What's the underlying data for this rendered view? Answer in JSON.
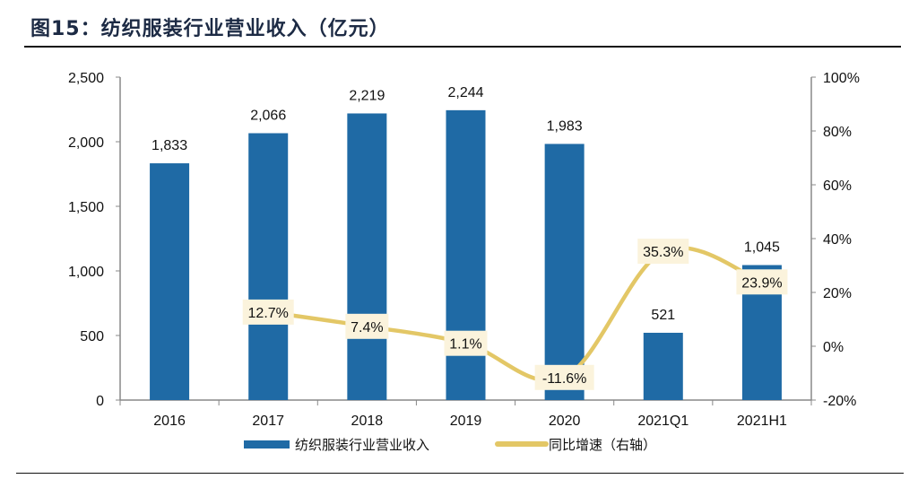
{
  "title": "图15：纺织服装行业营业收入（亿元）",
  "colors": {
    "bar": "#1f6aa5",
    "line": "#e3c766",
    "label_bg": "#fbf3dc",
    "title": "#1c2a44"
  },
  "chart_data": {
    "type": "bar+line",
    "categories": [
      "2016",
      "2017",
      "2018",
      "2019",
      "2020",
      "2021Q1",
      "2021H1"
    ],
    "series": [
      {
        "name": "纺织服装行业营业收入",
        "type": "bar",
        "axis": "left",
        "values": [
          1833,
          2066,
          2219,
          2244,
          1983,
          521,
          1045
        ],
        "labels": [
          "1,833",
          "2,066",
          "2,219",
          "2,244",
          "1,983",
          "521",
          "1,045"
        ]
      },
      {
        "name": "同比增速（右轴）",
        "type": "line",
        "axis": "right",
        "values": [
          null,
          12.7,
          7.4,
          1.1,
          -11.6,
          35.3,
          23.9
        ],
        "labels": [
          "",
          "12.7%",
          "7.4%",
          "1.1%",
          "-11.6%",
          "35.3%",
          "23.9%"
        ]
      }
    ],
    "y_left": {
      "range": [
        0,
        2500
      ],
      "ticks": [
        "0",
        "500",
        "1,000",
        "1,500",
        "2,000",
        "2,500"
      ]
    },
    "y_right": {
      "range": [
        -20,
        100
      ],
      "ticks": [
        "-20%",
        "0%",
        "20%",
        "40%",
        "60%",
        "80%",
        "100%"
      ]
    },
    "grid": false,
    "legend": "bottom"
  }
}
